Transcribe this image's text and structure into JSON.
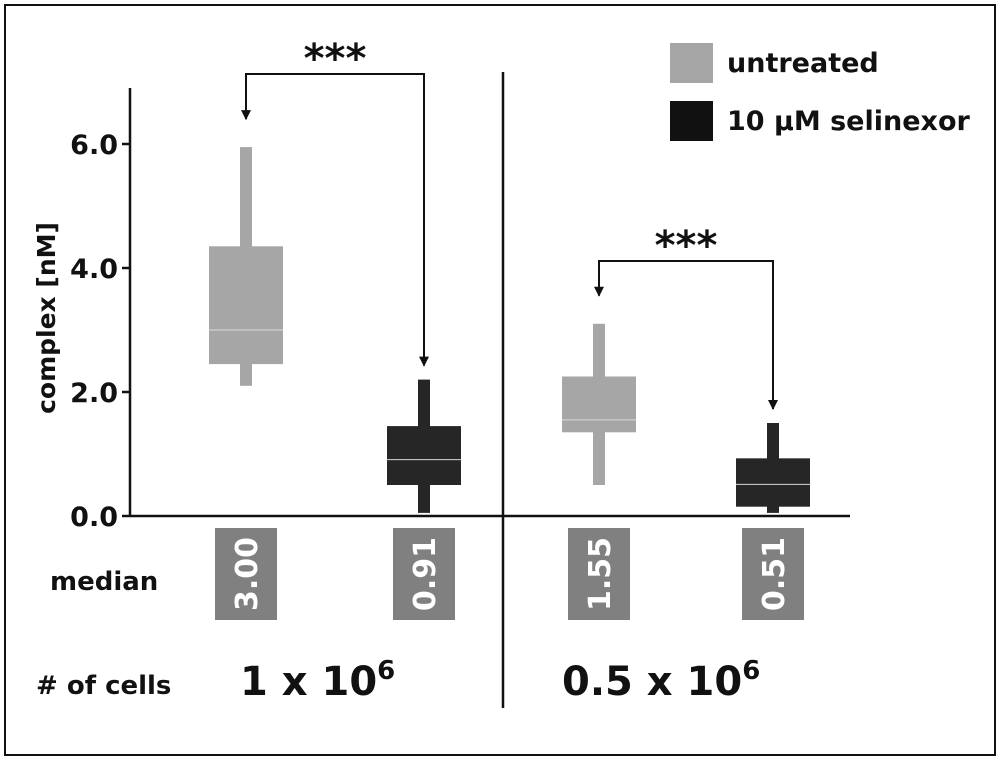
{
  "chart_data": {
    "type": "box",
    "ylabel": "complex [nM]",
    "ylim": [
      0,
      7
    ],
    "yticks": [
      "0.0",
      "2.0",
      "4.0",
      "6.0"
    ],
    "ytick_values": [
      0,
      2,
      4,
      6
    ],
    "legend": [
      {
        "label": "untreated",
        "color": "#a6a6a6"
      },
      {
        "label": "10 µM selinexor",
        "color": "#111111"
      }
    ],
    "legend_position": "top-right",
    "row_labels": {
      "median": "median",
      "cells": "# of cells"
    },
    "groups": [
      {
        "cells_base": "1 x 10",
        "cells_exp": "6",
        "significance": "***",
        "boxes": [
          {
            "series": "untreated",
            "color": "#a6a6a6",
            "whisker_low": 2.1,
            "q1": 2.45,
            "median": 3.0,
            "q3": 4.35,
            "whisker_high": 5.95,
            "median_label": "3.00"
          },
          {
            "series": "10 µM selinexor",
            "color": "#262626",
            "whisker_low": 0.05,
            "q1": 0.5,
            "median": 0.91,
            "q3": 1.45,
            "whisker_high": 2.2,
            "median_label": "0.91"
          }
        ]
      },
      {
        "cells_base": "0.5 x 10",
        "cells_exp": "6",
        "significance": "***",
        "boxes": [
          {
            "series": "untreated",
            "color": "#a6a6a6",
            "whisker_low": 0.5,
            "q1": 1.35,
            "median": 1.55,
            "q3": 2.25,
            "whisker_high": 3.1,
            "median_label": "1.55"
          },
          {
            "series": "10 µM selinexor",
            "color": "#262626",
            "whisker_low": 0.05,
            "q1": 0.15,
            "median": 0.51,
            "q3": 0.93,
            "whisker_high": 1.5,
            "median_label": "0.51"
          }
        ]
      }
    ]
  }
}
